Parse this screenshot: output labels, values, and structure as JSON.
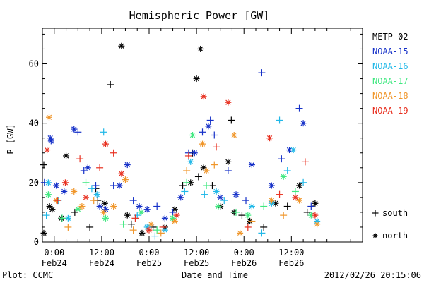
{
  "chart_data": {
    "type": "scatter",
    "title": "Hemispheric Power [GW]",
    "ylabel": "P [GW]",
    "xlabel": "Date and Time",
    "ylim": [
      0,
      72
    ],
    "xlim": [
      -3.0,
      78.0
    ],
    "grid": false,
    "legend_position": "right",
    "x_unit_note_hidden": true,
    "x_ticks": [
      {
        "value": 0,
        "time": "0:00",
        "date": "Feb24"
      },
      {
        "value": 12,
        "time": "12:00",
        "date": "Feb24"
      },
      {
        "value": 24,
        "time": "0:00",
        "date": "Feb25"
      },
      {
        "value": 36,
        "time": "12:00",
        "date": "Feb25"
      },
      {
        "value": 48,
        "time": "0:00",
        "date": "Feb26"
      },
      {
        "value": 60,
        "time": "12:00",
        "date": "Feb26"
      }
    ],
    "y_ticks": [
      0,
      20,
      40,
      60
    ],
    "series": [
      {
        "name": "METP-02",
        "color": "#000000"
      },
      {
        "name": "NOAA-15",
        "color": "#1530c8"
      },
      {
        "name": "NOAA-16",
        "color": "#20b8e8"
      },
      {
        "name": "NOAA-17",
        "color": "#40e880"
      },
      {
        "name": "NOAA-18",
        "color": "#f0962a"
      },
      {
        "name": "NOAA-19",
        "color": "#e83020"
      }
    ],
    "markers": [
      {
        "symbol": "+",
        "label": "south"
      },
      {
        "symbol": "*",
        "label": "north"
      }
    ],
    "points": [
      {
        "s": 0,
        "m": "n",
        "x": -3.4,
        "y": 3
      },
      {
        "s": 0,
        "m": "s",
        "x": -3.0,
        "y": 26
      },
      {
        "s": 0,
        "m": "n",
        "x": -1.2,
        "y": 12
      },
      {
        "s": 0,
        "m": "n",
        "x": -0.5,
        "y": 11
      },
      {
        "s": 0,
        "m": "n",
        "x": 1.8,
        "y": 8
      },
      {
        "s": 0,
        "m": "n",
        "x": 3.0,
        "y": 29
      },
      {
        "s": 0,
        "m": "s",
        "x": 5.2,
        "y": 10
      },
      {
        "s": 0,
        "m": "s",
        "x": 9.0,
        "y": 5
      },
      {
        "s": 0,
        "m": "s",
        "x": 10.5,
        "y": 18
      },
      {
        "s": 0,
        "m": "s",
        "x": 11.0,
        "y": 14
      },
      {
        "s": 0,
        "m": "n",
        "x": 12.8,
        "y": 13
      },
      {
        "s": 0,
        "m": "s",
        "x": 14.2,
        "y": 53
      },
      {
        "s": 0,
        "m": "n",
        "x": 17.0,
        "y": 66
      },
      {
        "s": 0,
        "m": "n",
        "x": 18.5,
        "y": 9
      },
      {
        "s": 0,
        "m": "s",
        "x": 19.5,
        "y": 6
      },
      {
        "s": 0,
        "m": "n",
        "x": 22.2,
        "y": 3
      },
      {
        "s": 0,
        "m": "s",
        "x": 25.0,
        "y": 5
      },
      {
        "s": 0,
        "m": "n",
        "x": 28.0,
        "y": 5
      },
      {
        "s": 0,
        "m": "n",
        "x": 30.5,
        "y": 11
      },
      {
        "s": 0,
        "m": "s",
        "x": 32.5,
        "y": 19
      },
      {
        "s": 0,
        "m": "n",
        "x": 34.5,
        "y": 20
      },
      {
        "s": 0,
        "m": "s",
        "x": 35.0,
        "y": 30
      },
      {
        "s": 0,
        "m": "n",
        "x": 36.0,
        "y": 55
      },
      {
        "s": 0,
        "m": "s",
        "x": 36.5,
        "y": 22
      },
      {
        "s": 0,
        "m": "n",
        "x": 37.0,
        "y": 65
      },
      {
        "s": 0,
        "m": "n",
        "x": 37.8,
        "y": 25
      },
      {
        "s": 0,
        "m": "s",
        "x": 40.0,
        "y": 19
      },
      {
        "s": 0,
        "m": "n",
        "x": 42.0,
        "y": 12
      },
      {
        "s": 0,
        "m": "n",
        "x": 44.0,
        "y": 27
      },
      {
        "s": 0,
        "m": "s",
        "x": 44.8,
        "y": 41
      },
      {
        "s": 0,
        "m": "n",
        "x": 45.5,
        "y": 10
      },
      {
        "s": 0,
        "m": "s",
        "x": 47.5,
        "y": 9
      },
      {
        "s": 0,
        "m": "n",
        "x": 49.5,
        "y": 7
      },
      {
        "s": 0,
        "m": "s",
        "x": 53.0,
        "y": 5
      },
      {
        "s": 0,
        "m": "n",
        "x": 56.0,
        "y": 13
      },
      {
        "s": 0,
        "m": "s",
        "x": 59.0,
        "y": 12
      },
      {
        "s": 0,
        "m": "n",
        "x": 62.0,
        "y": 19
      },
      {
        "s": 0,
        "m": "s",
        "x": 64.0,
        "y": 10
      },
      {
        "s": 0,
        "m": "n",
        "x": 66.0,
        "y": 13
      },
      {
        "s": 1,
        "m": "s",
        "x": -2.5,
        "y": 20
      },
      {
        "s": 1,
        "m": "n",
        "x": -1.0,
        "y": 35
      },
      {
        "s": 1,
        "m": "n",
        "x": -0.8,
        "y": 34
      },
      {
        "s": 1,
        "m": "n",
        "x": 0.5,
        "y": 19
      },
      {
        "s": 1,
        "m": "n",
        "x": 2.5,
        "y": 17
      },
      {
        "s": 1,
        "m": "n",
        "x": 5.0,
        "y": 38
      },
      {
        "s": 1,
        "m": "s",
        "x": 6.0,
        "y": 37
      },
      {
        "s": 1,
        "m": "s",
        "x": 7.5,
        "y": 24
      },
      {
        "s": 1,
        "m": "n",
        "x": 8.5,
        "y": 25
      },
      {
        "s": 1,
        "m": "s",
        "x": 10.5,
        "y": 19
      },
      {
        "s": 1,
        "m": "n",
        "x": 11.5,
        "y": 12
      },
      {
        "s": 1,
        "m": "n",
        "x": 13.0,
        "y": 11
      },
      {
        "s": 1,
        "m": "s",
        "x": 15.0,
        "y": 19
      },
      {
        "s": 1,
        "m": "n",
        "x": 16.5,
        "y": 19
      },
      {
        "s": 1,
        "m": "n",
        "x": 18.5,
        "y": 26
      },
      {
        "s": 1,
        "m": "s",
        "x": 20.0,
        "y": 14
      },
      {
        "s": 1,
        "m": "n",
        "x": 21.5,
        "y": 12
      },
      {
        "s": 1,
        "m": "n",
        "x": 23.5,
        "y": 11
      },
      {
        "s": 1,
        "m": "s",
        "x": 26.0,
        "y": 12
      },
      {
        "s": 1,
        "m": "n",
        "x": 28.0,
        "y": 8
      },
      {
        "s": 1,
        "m": "s",
        "x": 30.0,
        "y": 10
      },
      {
        "s": 1,
        "m": "n",
        "x": 32.0,
        "y": 15
      },
      {
        "s": 1,
        "m": "s",
        "x": 34.0,
        "y": 30
      },
      {
        "s": 1,
        "m": "n",
        "x": 35.5,
        "y": 30
      },
      {
        "s": 1,
        "m": "s",
        "x": 37.5,
        "y": 37
      },
      {
        "s": 1,
        "m": "n",
        "x": 39.0,
        "y": 39
      },
      {
        "s": 1,
        "m": "s",
        "x": 39.5,
        "y": 41
      },
      {
        "s": 1,
        "m": "s",
        "x": 40.5,
        "y": 36
      },
      {
        "s": 1,
        "m": "n",
        "x": 42.0,
        "y": 15
      },
      {
        "s": 1,
        "m": "s",
        "x": 44.0,
        "y": 24
      },
      {
        "s": 1,
        "m": "n",
        "x": 46.0,
        "y": 16
      },
      {
        "s": 1,
        "m": "s",
        "x": 48.5,
        "y": 14
      },
      {
        "s": 1,
        "m": "n",
        "x": 50.0,
        "y": 26
      },
      {
        "s": 1,
        "m": "s",
        "x": 52.5,
        "y": 57
      },
      {
        "s": 1,
        "m": "n",
        "x": 55.0,
        "y": 19
      },
      {
        "s": 1,
        "m": "s",
        "x": 57.5,
        "y": 28
      },
      {
        "s": 1,
        "m": "n",
        "x": 59.5,
        "y": 31
      },
      {
        "s": 1,
        "m": "s",
        "x": 62.0,
        "y": 45
      },
      {
        "s": 1,
        "m": "n",
        "x": 63.0,
        "y": 40
      },
      {
        "s": 1,
        "m": "s",
        "x": 65.0,
        "y": 12
      },
      {
        "s": 2,
        "m": "s",
        "x": -2.0,
        "y": 9
      },
      {
        "s": 2,
        "m": "n",
        "x": -1.5,
        "y": 20
      },
      {
        "s": 2,
        "m": "s",
        "x": 1.0,
        "y": 14
      },
      {
        "s": 2,
        "m": "n",
        "x": 3.5,
        "y": 8
      },
      {
        "s": 2,
        "m": "s",
        "x": 9.5,
        "y": 18
      },
      {
        "s": 2,
        "m": "n",
        "x": 10.8,
        "y": 16
      },
      {
        "s": 2,
        "m": "s",
        "x": 12.5,
        "y": 37
      },
      {
        "s": 2,
        "m": "s",
        "x": 21.0,
        "y": 9
      },
      {
        "s": 2,
        "m": "n",
        "x": 23.5,
        "y": 5
      },
      {
        "s": 2,
        "m": "s",
        "x": 25.5,
        "y": 2
      },
      {
        "s": 2,
        "m": "n",
        "x": 28.0,
        "y": 4
      },
      {
        "s": 2,
        "m": "s",
        "x": 33.0,
        "y": 17
      },
      {
        "s": 2,
        "m": "n",
        "x": 34.5,
        "y": 27
      },
      {
        "s": 2,
        "m": "s",
        "x": 38.0,
        "y": 16
      },
      {
        "s": 2,
        "m": "n",
        "x": 41.0,
        "y": 17
      },
      {
        "s": 2,
        "m": "s",
        "x": 43.0,
        "y": 14
      },
      {
        "s": 2,
        "m": "n",
        "x": 50.0,
        "y": 12
      },
      {
        "s": 2,
        "m": "s",
        "x": 52.5,
        "y": 3
      },
      {
        "s": 2,
        "m": "n",
        "x": 55.0,
        "y": 13
      },
      {
        "s": 2,
        "m": "s",
        "x": 57.0,
        "y": 41
      },
      {
        "s": 2,
        "m": "s",
        "x": 59.0,
        "y": 24
      },
      {
        "s": 2,
        "m": "n",
        "x": 60.5,
        "y": 31
      },
      {
        "s": 2,
        "m": "s",
        "x": 63.0,
        "y": 20
      },
      {
        "s": 2,
        "m": "n",
        "x": 66.5,
        "y": 7
      },
      {
        "s": 3,
        "m": "n",
        "x": -1.5,
        "y": 16
      },
      {
        "s": 3,
        "m": "s",
        "x": 2.0,
        "y": 8
      },
      {
        "s": 3,
        "m": "n",
        "x": 6.0,
        "y": 11
      },
      {
        "s": 3,
        "m": "s",
        "x": 8.0,
        "y": 20
      },
      {
        "s": 3,
        "m": "n",
        "x": 13.0,
        "y": 8
      },
      {
        "s": 3,
        "m": "s",
        "x": 17.5,
        "y": 6
      },
      {
        "s": 3,
        "m": "n",
        "x": 22.0,
        "y": 10
      },
      {
        "s": 3,
        "m": "s",
        "x": 26.0,
        "y": 4
      },
      {
        "s": 3,
        "m": "n",
        "x": 30.0,
        "y": 8
      },
      {
        "s": 3,
        "m": "s",
        "x": 33.5,
        "y": 20
      },
      {
        "s": 3,
        "m": "n",
        "x": 35.0,
        "y": 36
      },
      {
        "s": 3,
        "m": "s",
        "x": 38.5,
        "y": 19
      },
      {
        "s": 3,
        "m": "n",
        "x": 41.5,
        "y": 12
      },
      {
        "s": 3,
        "m": "s",
        "x": 46.0,
        "y": 10
      },
      {
        "s": 3,
        "m": "n",
        "x": 49.0,
        "y": 9
      },
      {
        "s": 3,
        "m": "s",
        "x": 53.0,
        "y": 12
      },
      {
        "s": 3,
        "m": "n",
        "x": 58.0,
        "y": 22
      },
      {
        "s": 3,
        "m": "s",
        "x": 61.0,
        "y": 17
      },
      {
        "s": 3,
        "m": "n",
        "x": 65.0,
        "y": 9
      },
      {
        "s": 4,
        "m": "n",
        "x": -1.3,
        "y": 42
      },
      {
        "s": 4,
        "m": "n",
        "x": 0.5,
        "y": 14
      },
      {
        "s": 4,
        "m": "s",
        "x": 3.5,
        "y": 5
      },
      {
        "s": 4,
        "m": "n",
        "x": 5.0,
        "y": 17
      },
      {
        "s": 4,
        "m": "n",
        "x": 7.0,
        "y": 12
      },
      {
        "s": 4,
        "m": "s",
        "x": 10.0,
        "y": 14
      },
      {
        "s": 4,
        "m": "n",
        "x": 12.5,
        "y": 10
      },
      {
        "s": 4,
        "m": "n",
        "x": 15.0,
        "y": 12
      },
      {
        "s": 4,
        "m": "n",
        "x": 18.0,
        "y": 21
      },
      {
        "s": 4,
        "m": "s",
        "x": 20.0,
        "y": 4
      },
      {
        "s": 4,
        "m": "n",
        "x": 24.5,
        "y": 6
      },
      {
        "s": 4,
        "m": "s",
        "x": 27.0,
        "y": 3
      },
      {
        "s": 4,
        "m": "n",
        "x": 30.5,
        "y": 7
      },
      {
        "s": 4,
        "m": "s",
        "x": 33.5,
        "y": 24
      },
      {
        "s": 4,
        "m": "n",
        "x": 37.5,
        "y": 33
      },
      {
        "s": 4,
        "m": "n",
        "x": 38.5,
        "y": 24
      },
      {
        "s": 4,
        "m": "s",
        "x": 40.5,
        "y": 26
      },
      {
        "s": 4,
        "m": "n",
        "x": 45.5,
        "y": 36
      },
      {
        "s": 4,
        "m": "n",
        "x": 47.0,
        "y": 3
      },
      {
        "s": 4,
        "m": "s",
        "x": 50.0,
        "y": 7
      },
      {
        "s": 4,
        "m": "n",
        "x": 55.0,
        "y": 14
      },
      {
        "s": 4,
        "m": "s",
        "x": 58.0,
        "y": 9
      },
      {
        "s": 4,
        "m": "n",
        "x": 62.0,
        "y": 14
      },
      {
        "s": 4,
        "m": "n",
        "x": 66.5,
        "y": 6
      },
      {
        "s": 5,
        "m": "n",
        "x": -1.8,
        "y": 31
      },
      {
        "s": 5,
        "m": "s",
        "x": 0.8,
        "y": 14
      },
      {
        "s": 5,
        "m": "n",
        "x": 2.8,
        "y": 20
      },
      {
        "s": 5,
        "m": "s",
        "x": 6.5,
        "y": 28
      },
      {
        "s": 5,
        "m": "n",
        "x": 8.0,
        "y": 15
      },
      {
        "s": 5,
        "m": "s",
        "x": 11.5,
        "y": 25
      },
      {
        "s": 5,
        "m": "n",
        "x": 13.0,
        "y": 33
      },
      {
        "s": 5,
        "m": "s",
        "x": 15.0,
        "y": 30
      },
      {
        "s": 5,
        "m": "n",
        "x": 17.0,
        "y": 23
      },
      {
        "s": 5,
        "m": "s",
        "x": 20.5,
        "y": 8
      },
      {
        "s": 5,
        "m": "n",
        "x": 24.0,
        "y": 4
      },
      {
        "s": 5,
        "m": "s",
        "x": 27.5,
        "y": 5
      },
      {
        "s": 5,
        "m": "n",
        "x": 31.0,
        "y": 9
      },
      {
        "s": 5,
        "m": "s",
        "x": 34.0,
        "y": 29
      },
      {
        "s": 5,
        "m": "n",
        "x": 37.8,
        "y": 49
      },
      {
        "s": 5,
        "m": "s",
        "x": 41.0,
        "y": 32
      },
      {
        "s": 5,
        "m": "n",
        "x": 44.0,
        "y": 47
      },
      {
        "s": 5,
        "m": "s",
        "x": 49.0,
        "y": 5
      },
      {
        "s": 5,
        "m": "n",
        "x": 54.5,
        "y": 35
      },
      {
        "s": 5,
        "m": "s",
        "x": 57.0,
        "y": 16
      },
      {
        "s": 5,
        "m": "n",
        "x": 61.0,
        "y": 15
      },
      {
        "s": 5,
        "m": "s",
        "x": 63.5,
        "y": 27
      },
      {
        "s": 5,
        "m": "n",
        "x": 66.0,
        "y": 9
      }
    ]
  },
  "footer": {
    "plot_credit": "Plot: CCMC",
    "timestamp": "2012/02/26 20:15:06"
  }
}
